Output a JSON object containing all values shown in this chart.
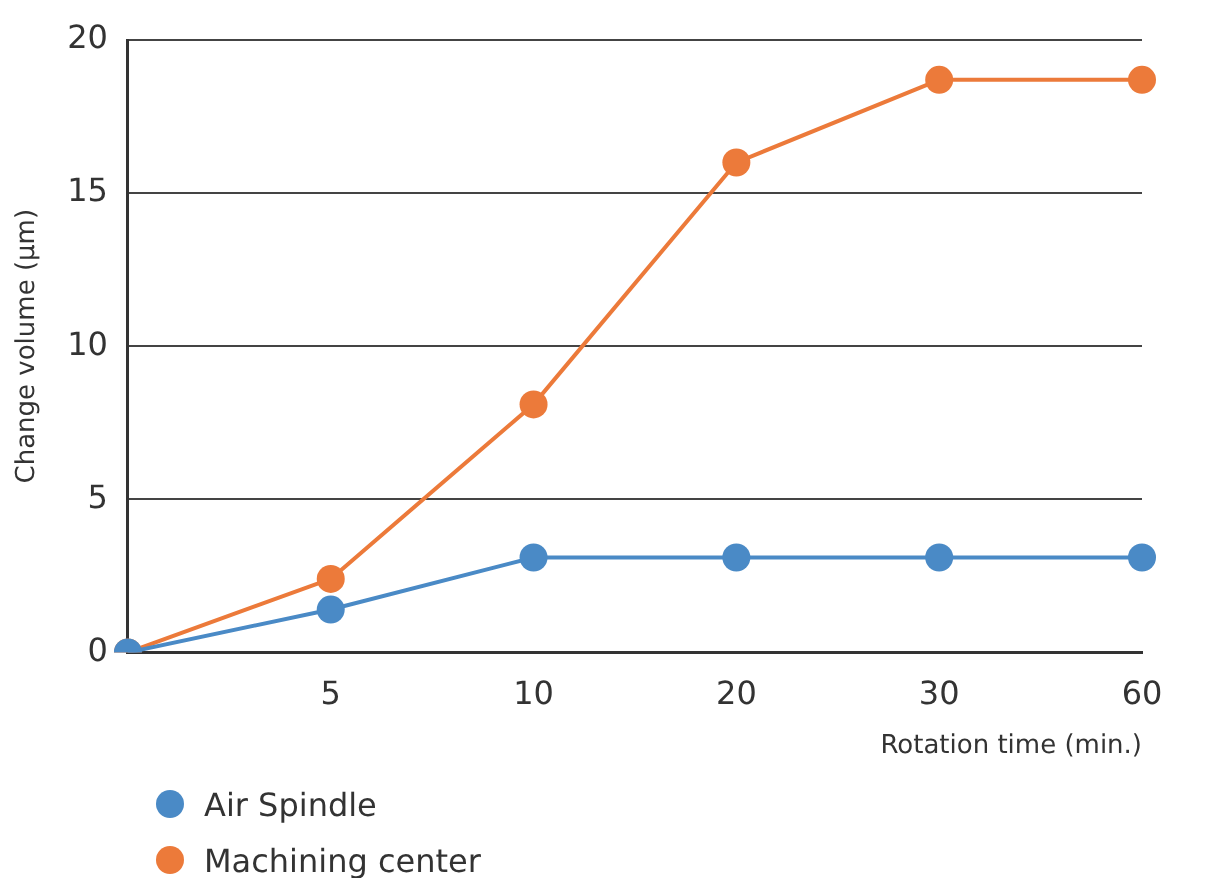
{
  "chart_data": {
    "type": "line",
    "xlabel": "Rotation time (min.)",
    "ylabel": "Change volume (μm)",
    "categories": [
      null,
      "5",
      "10",
      "20",
      "30",
      "60"
    ],
    "series": [
      {
        "name": "Air Spindle",
        "color": "#4a8ac6",
        "values": [
          0,
          1.4,
          3.1,
          3.1,
          3.1,
          3.1
        ]
      },
      {
        "name": "Machining center",
        "color": "#ec7a3a",
        "values": [
          0,
          2.4,
          8.1,
          16,
          18.7,
          18.7
        ]
      }
    ],
    "ylim": [
      0,
      20
    ],
    "yticks": [
      0,
      5,
      10,
      15,
      20
    ],
    "grid": "y",
    "legend": "bottom left",
    "marker": "circle",
    "line_style": "solid"
  }
}
